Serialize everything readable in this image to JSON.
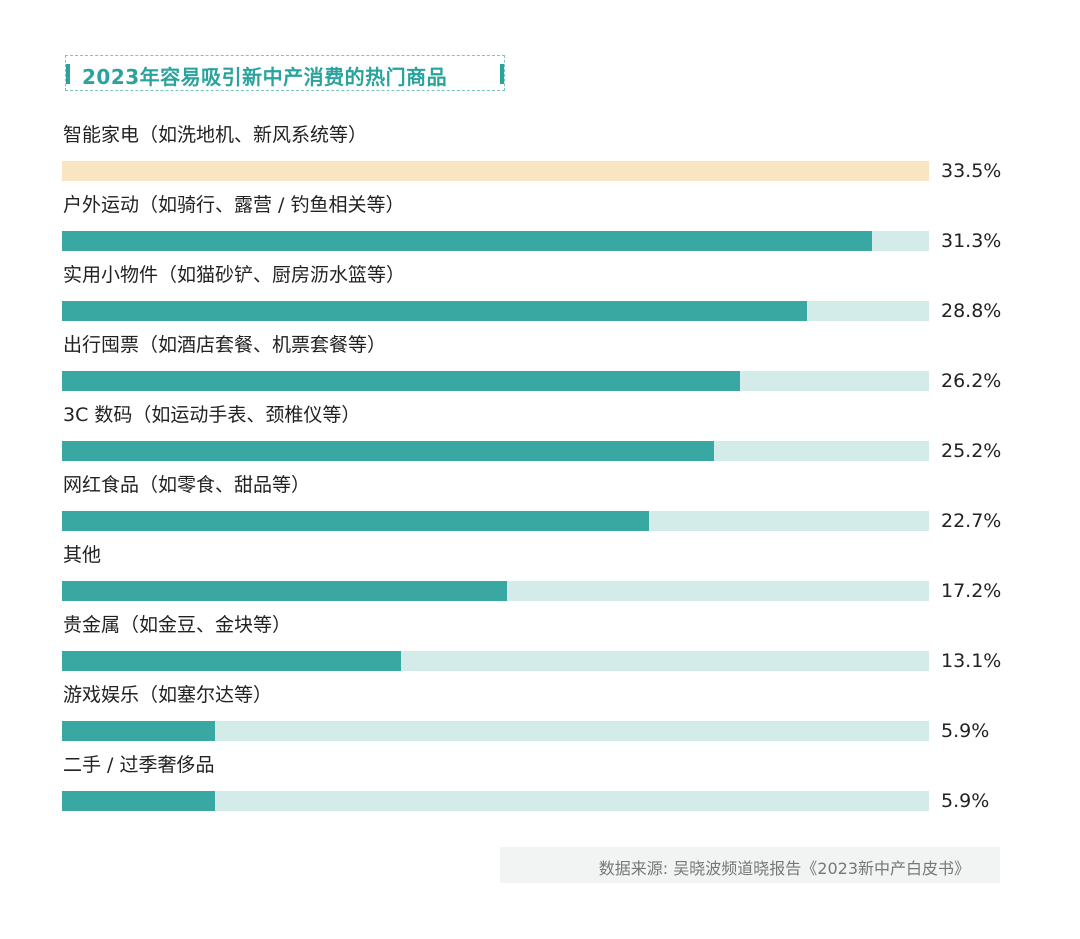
{
  "chart_data": {
    "type": "bar",
    "orientation": "horizontal",
    "title": "2023年容易吸引新中产消费的热门商品",
    "categories": [
      "智能家电（如洗地机、新风系统等）",
      "户外运动（如骑行、露营 / 钓鱼相关等）",
      "实用小物件（如猫砂铲、厨房沥水篮等）",
      "出行囤票（如酒店套餐、机票套餐等）",
      "3C 数码（如运动手表、颈椎仪等）",
      "网红食品（如零食、甜品等）",
      "其他",
      "贵金属（如金豆、金块等）",
      "游戏娱乐（如塞尔达等）",
      "二手 / 过季奢侈品"
    ],
    "values": [
      33.5,
      31.3,
      28.8,
      26.2,
      25.2,
      22.7,
      17.2,
      13.1,
      5.9,
      5.9
    ],
    "value_labels": [
      "33.5%",
      "31.3%",
      "28.8%",
      "26.2%",
      "25.2%",
      "22.7%",
      "17.2%",
      "13.1%",
      "5.9%",
      "5.9%"
    ],
    "xlim": [
      0,
      33.5
    ],
    "unit": "%",
    "source": "数据来源: 吴晓波频道晓报告《2023新中产白皮书》"
  },
  "colors": {
    "accent": "#2aa39c",
    "bar_fill": "#3aa8a2",
    "bar_track": "#d3ecea",
    "highlight_fill": "#f9e6c1"
  }
}
